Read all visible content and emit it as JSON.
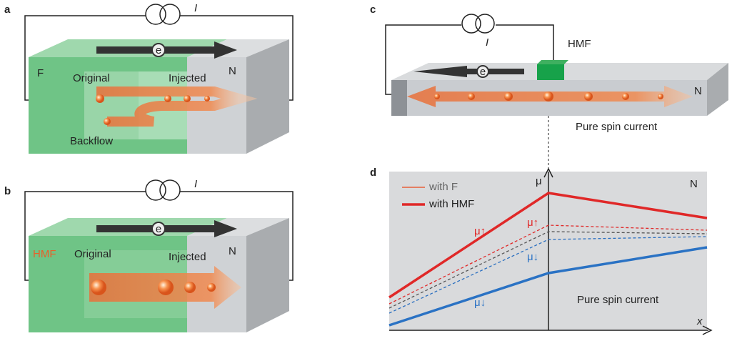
{
  "panel_a": {
    "label": "a",
    "current": "I",
    "ferromagnet": "F",
    "original": "Original",
    "injected": "Injected",
    "normal": "N",
    "backflow": "Backflow",
    "electron": "e"
  },
  "panel_b": {
    "label": "b",
    "current": "I",
    "half_metal": "HMF",
    "original": "Original",
    "injected": "Injected",
    "normal": "N",
    "electron": "e"
  },
  "panel_c": {
    "label": "c",
    "current": "I",
    "half_metal": "HMF",
    "normal": "N",
    "caption": "Pure spin current",
    "electron": "e"
  },
  "panel_d": {
    "label": "d",
    "legend": [
      "with F",
      "with HMF"
    ],
    "y_axis": "μ",
    "x_axis": "x",
    "normal": "N",
    "mu_up": "μ↑",
    "mu_down": "μ↓",
    "caption": "Pure spin current"
  }
}
